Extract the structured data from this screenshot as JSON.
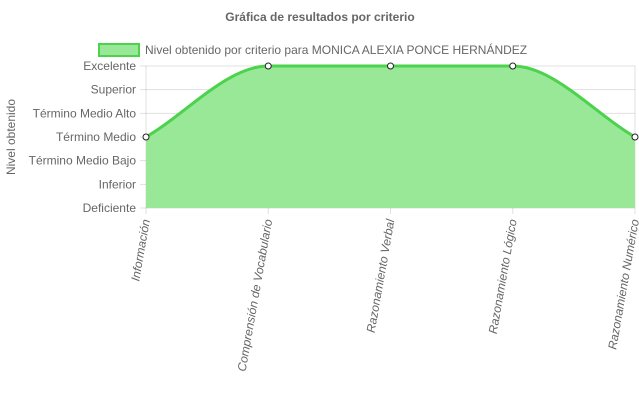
{
  "chart_data": {
    "type": "area",
    "title": "Gráfica de resultados por criterio",
    "ylabel": "Nivel obtenido",
    "xlabel": "",
    "y_levels": [
      "Deficiente",
      "Inferior",
      "Término Medio Bajo",
      "Término Medio",
      "Término Medio Alto",
      "Superior",
      "Excelente"
    ],
    "categories": [
      "Información",
      "Comprensión de Vocabulario",
      "Razonamiento Verbal",
      "Razonamiento Lógico",
      "Razonamiento Numérico"
    ],
    "series": [
      {
        "name": "Nivel obtenido por criterio para MONICA ALEXIA PONCE HERNÁNDEZ",
        "values": [
          "Término Medio",
          "Excelente",
          "Excelente",
          "Excelente",
          "Término Medio"
        ],
        "fill_color": "#98e898",
        "line_color": "#4cd24c"
      }
    ],
    "grid": true,
    "legend_position": "top"
  }
}
